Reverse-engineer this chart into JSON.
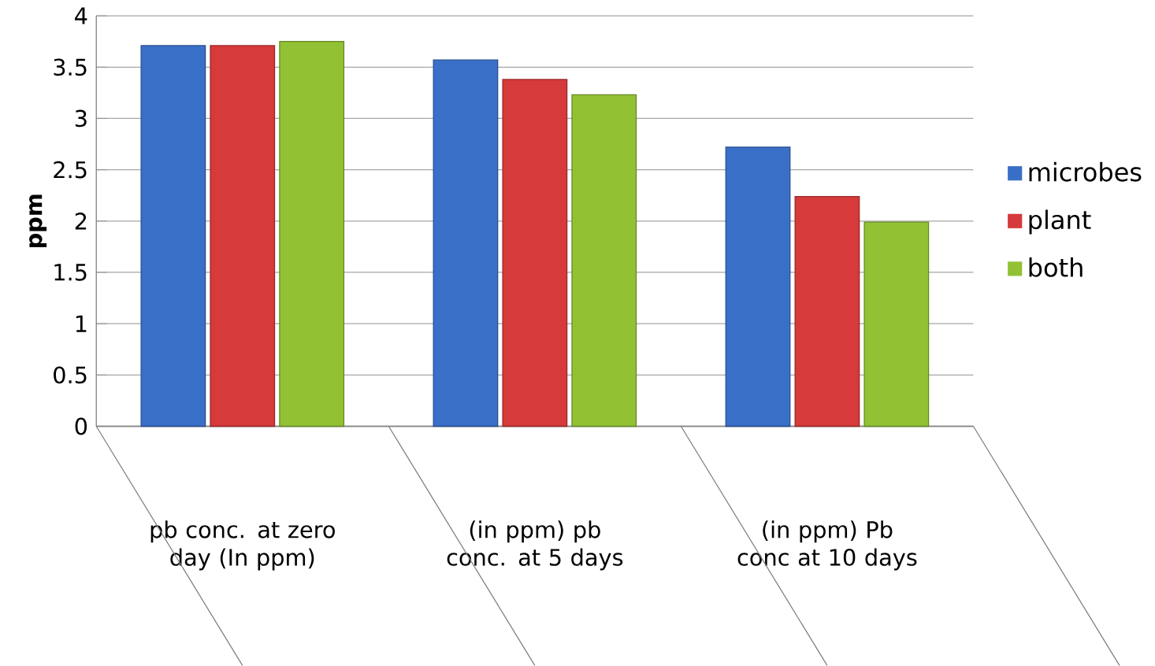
{
  "chart_data": {
    "type": "bar",
    "ylabel": "ppm",
    "categories": [
      "pb conc. at zero day (In ppm)",
      "(in ppm) pb conc. at 5 days",
      "(in ppm) Pb conc at 10 days"
    ],
    "series": [
      {
        "name": "microbes",
        "color": "#3a6fc8",
        "values": [
          3.71,
          3.57,
          2.72
        ]
      },
      {
        "name": "plant",
        "color": "#d63a3a",
        "values": [
          3.71,
          3.38,
          2.24
        ]
      },
      {
        "name": "both",
        "color": "#92c234",
        "values": [
          3.75,
          3.23,
          1.99
        ]
      }
    ],
    "ylim": [
      0,
      4
    ],
    "yticks": [
      0,
      0.5,
      1,
      1.5,
      2,
      2.5,
      3,
      3.5,
      4
    ],
    "grid": "y",
    "legend": "right"
  }
}
